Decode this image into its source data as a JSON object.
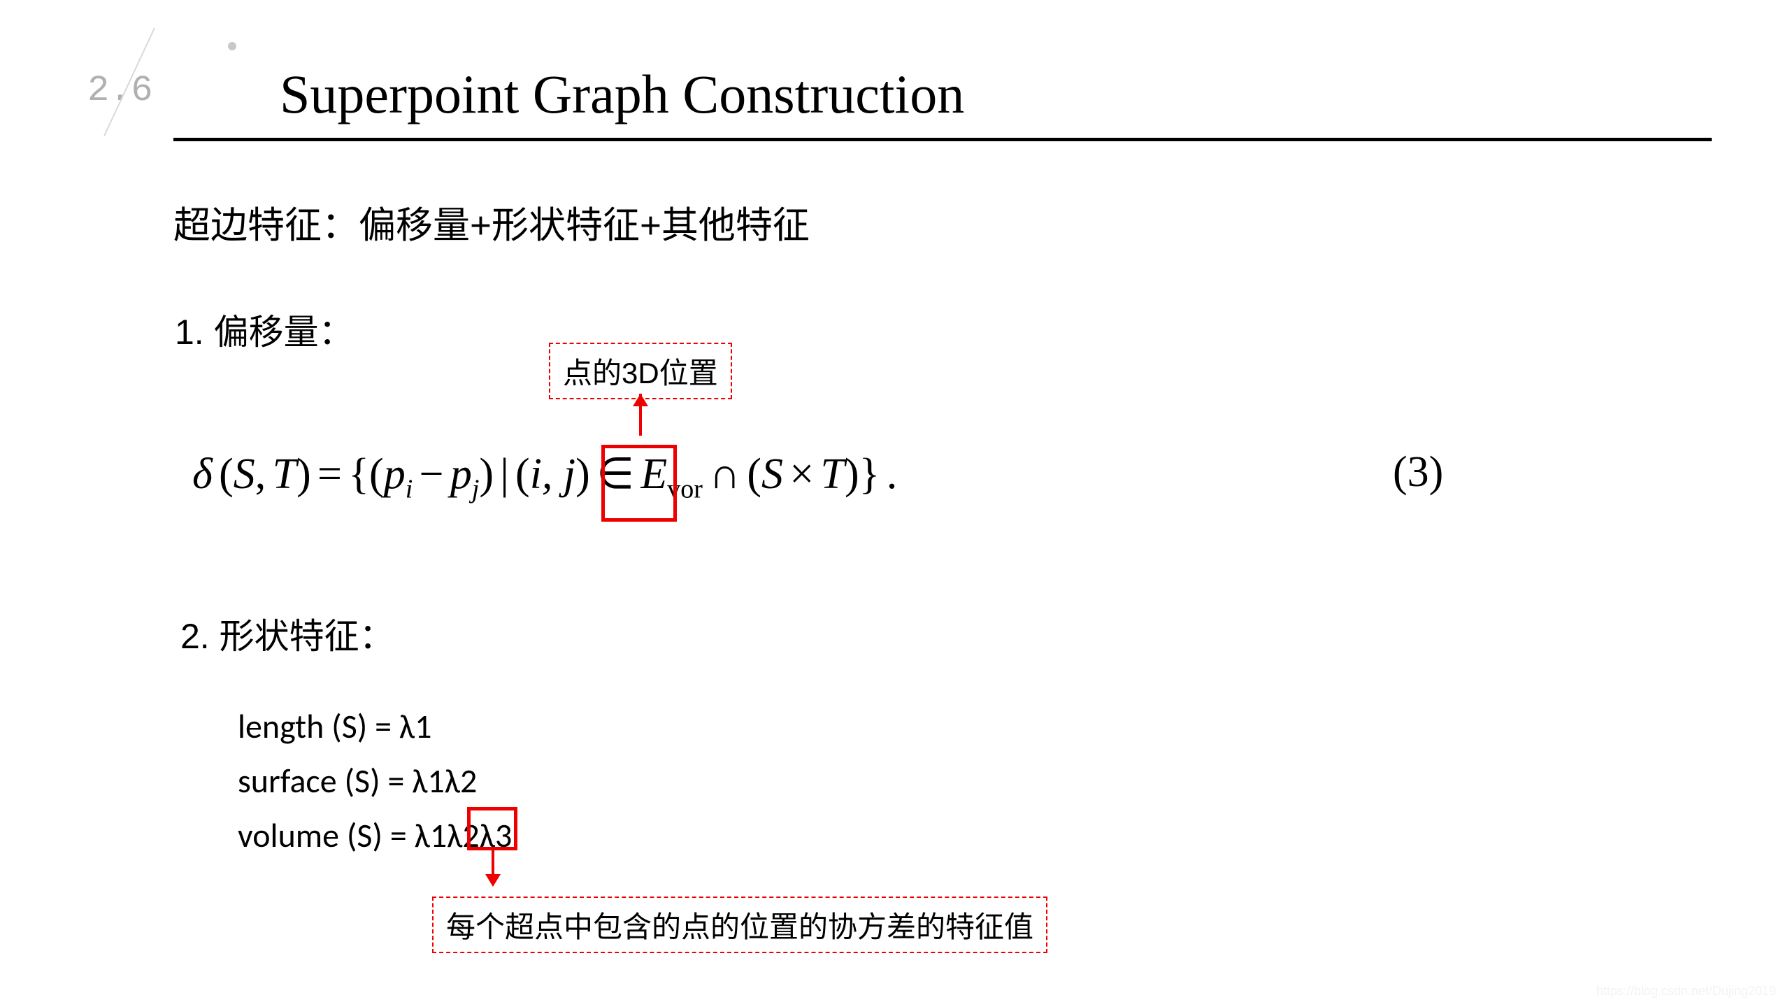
{
  "section_number": "2.6",
  "title": "Superpoint Graph Construction",
  "intro_text": "超边特征：偏移量+形状特征+其他特征",
  "sec1_heading": "1. 偏移量：",
  "annotation1": "点的3D位置",
  "equation": {
    "delta": "δ",
    "S": "S",
    "T": "T",
    "p": "p",
    "i_sub": "i",
    "j_sub": "j",
    "ij": "i, j",
    "Evor_E": "E",
    "Evor_sub": "vor",
    "cross": "×",
    "cap": "∩",
    "in": "∈",
    "number": "(3)"
  },
  "sec2_heading": "2. 形状特征：",
  "shape_features": {
    "line1": "length (S) = λ1",
    "line2": "surface (S) = λ1λ2",
    "line3": "volume (S) = λ1λ2λ3"
  },
  "annotation2": "每个超点中包含的点的位置的协方差的特征值",
  "colors": {
    "annotation_border": "#ee0000",
    "section_number": "#b0b0b0",
    "decorative": "#d9d9d9",
    "text": "#000000",
    "background": "#ffffff"
  },
  "watermark": "https://blog.csdn.net/Dujing2019"
}
